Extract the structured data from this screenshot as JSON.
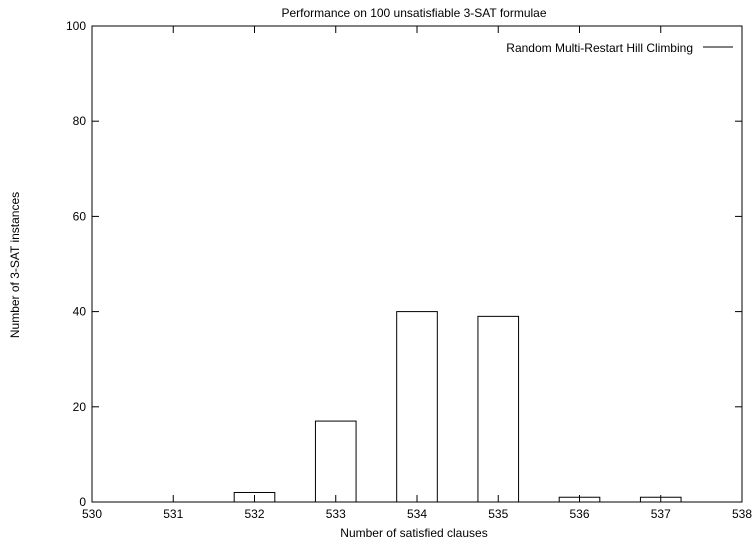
{
  "chart_data": {
    "type": "bar",
    "title": "Performance on 100 unsatisfiable 3-SAT formulae",
    "xlabel": "Number of satisfied clauses",
    "ylabel": "Number of 3-SAT instances",
    "xlim": [
      530,
      538
    ],
    "ylim": [
      0,
      100
    ],
    "x_ticks": [
      "530",
      "531",
      "532",
      "533",
      "534",
      "535",
      "536",
      "537",
      "538"
    ],
    "y_ticks": [
      "0",
      "20",
      "40",
      "60",
      "80",
      "100"
    ],
    "grid": false,
    "legend_position": "top-right",
    "series": [
      {
        "name": "Random Multi-Restart Hill Climbing",
        "color": "#000000",
        "x": [
          532,
          533,
          534,
          535,
          536,
          537
        ],
        "values": [
          2,
          17,
          40,
          39,
          1,
          1
        ]
      }
    ]
  }
}
